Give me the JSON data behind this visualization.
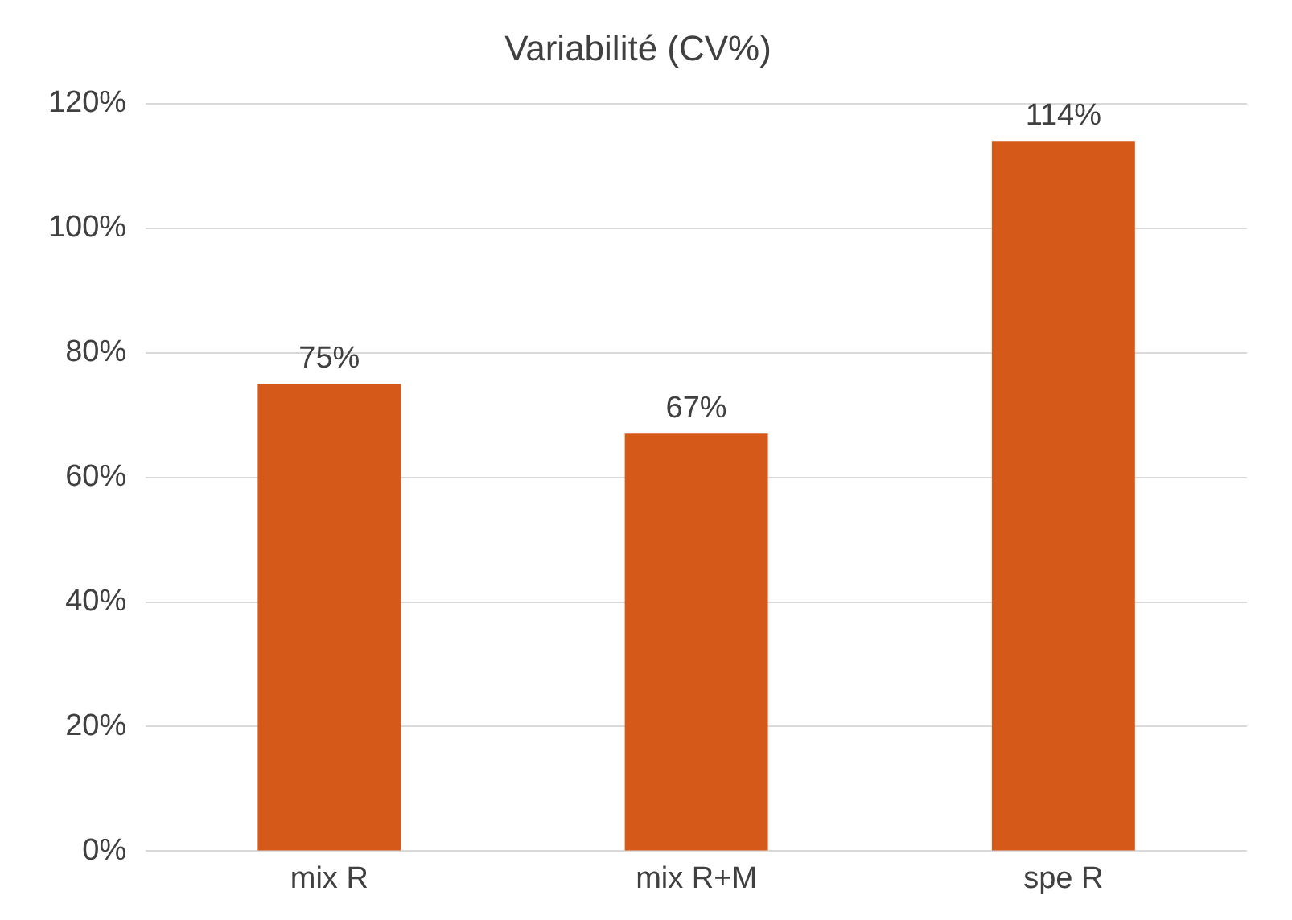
{
  "chart_data": {
    "type": "bar",
    "title": "Variabilité (CV%)",
    "categories": [
      "mix R",
      "mix R+M",
      "spe R"
    ],
    "values": [
      75,
      67,
      114
    ],
    "value_labels": [
      "75%",
      "67%",
      "114%"
    ],
    "color": "#d55a19",
    "ylim": [
      0,
      120
    ],
    "yticks": [
      {
        "value": 0,
        "label": "0%"
      },
      {
        "value": 20,
        "label": "20%"
      },
      {
        "value": 40,
        "label": "40%"
      },
      {
        "value": 60,
        "label": "60%"
      },
      {
        "value": 80,
        "label": "80%"
      },
      {
        "value": 100,
        "label": "100%"
      },
      {
        "value": 120,
        "label": "120%"
      }
    ],
    "grid": "y",
    "legend": false
  }
}
